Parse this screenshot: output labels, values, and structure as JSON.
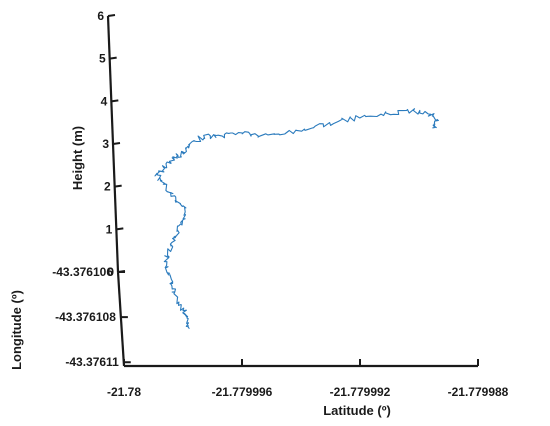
{
  "chart_data": {
    "type": "line",
    "projection": "3d",
    "title": "",
    "xlabel": "Latitude (º)",
    "ylabel": "Longitude (º)",
    "zlabel": "Height (m)",
    "xlim": [
      -21.78,
      -21.779988
    ],
    "ylim": [
      -43.376106,
      -43.37611
    ],
    "zlim": [
      0,
      6
    ],
    "x_ticks": [
      "-21.78",
      "-21.779996",
      "-21.779992",
      "-21.779988"
    ],
    "y_ticks": [
      "-43.376106",
      "-43.376108",
      "-43.37611"
    ],
    "z_ticks": [
      "0",
      "1",
      "2",
      "3",
      "4",
      "5",
      "6"
    ],
    "grid": false,
    "series": [
      {
        "color": "#2b7bbd",
        "points": [
          [
            -21.7799977,
            -43.3761084,
            0.0
          ],
          [
            -21.7799978,
            -43.3761084,
            0.3
          ],
          [
            -21.779998,
            -43.3761084,
            0.6
          ],
          [
            -21.7799982,
            -43.3761084,
            0.9
          ],
          [
            -21.7799983,
            -43.3761084,
            1.2
          ],
          [
            -21.7799984,
            -43.3761084,
            1.6
          ],
          [
            -21.7799982,
            -43.3761084,
            1.9
          ],
          [
            -21.779998,
            -43.3761084,
            2.2
          ],
          [
            -21.7799978,
            -43.3761084,
            2.5
          ],
          [
            -21.7799977,
            -43.3761084,
            2.8
          ],
          [
            -21.7799981,
            -43.3761084,
            3.1
          ],
          [
            -21.7799984,
            -43.3761084,
            3.4
          ],
          [
            -21.7799986,
            -43.3761084,
            3.6
          ],
          [
            -21.7799983,
            -43.3761084,
            3.8
          ],
          [
            -21.779998,
            -43.3761084,
            4.0
          ],
          [
            -21.7799977,
            -43.3761084,
            4.1
          ],
          [
            -21.7799975,
            -43.3761084,
            4.25
          ],
          [
            -21.779997,
            -43.3761084,
            4.5
          ],
          [
            -21.7799964,
            -43.3761084,
            4.5
          ],
          [
            -21.7799957,
            -43.3761084,
            4.6
          ],
          [
            -21.779995,
            -43.3761084,
            4.5
          ],
          [
            -21.779994,
            -43.3761084,
            4.6
          ],
          [
            -21.779993,
            -43.3761084,
            4.75
          ],
          [
            -21.779992,
            -43.3761084,
            4.9
          ],
          [
            -21.779991,
            -43.3761084,
            5.0
          ],
          [
            -21.77999,
            -43.3761084,
            5.1
          ],
          [
            -21.7799893,
            -43.3761084,
            5.05
          ],
          [
            -21.779989,
            -43.3761084,
            4.85
          ],
          [
            -21.7799892,
            -43.3761084,
            4.7
          ]
        ]
      }
    ]
  }
}
